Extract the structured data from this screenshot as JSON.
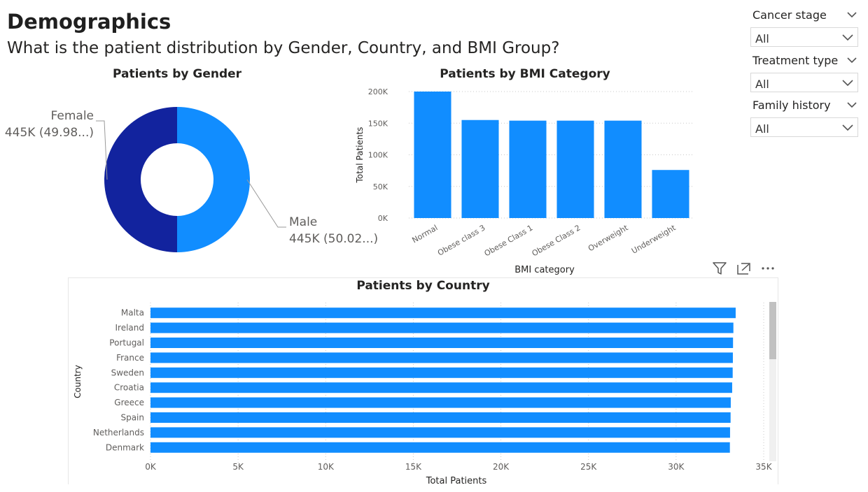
{
  "page": {
    "title": "Demographics",
    "subtitle": "What is the patient distribution by Gender, Country, and BMI Group?"
  },
  "slicers": [
    {
      "label": "Cancer stage",
      "value": "All",
      "icon": "chevron-down-icon"
    },
    {
      "label": "Treatment type",
      "value": "All",
      "icon": "chevron-down-icon"
    },
    {
      "label": "Family history",
      "value": "All",
      "icon": "chevron-down-icon"
    }
  ],
  "visual_header": {
    "icons": [
      "filter-icon",
      "focus-mode-icon",
      "more-options-icon"
    ]
  },
  "colors": {
    "primary": "#118dff",
    "secondary": "#12239e",
    "gridline": "#c8c8c8",
    "text": "#252423"
  },
  "chart_data": [
    {
      "type": "pie",
      "title": "Patients by Gender",
      "donut": true,
      "slices": [
        {
          "label": "Male",
          "value": 445000,
          "display": "445K (50.02...)",
          "color": "#118dff"
        },
        {
          "label": "Female",
          "value": 445000,
          "display": "445K (49.98...)",
          "color": "#12239e"
        }
      ]
    },
    {
      "type": "bar",
      "title": "Patients by BMI Category",
      "xlabel": "BMI category",
      "ylabel": "Total Patients",
      "categories": [
        "Normal",
        "Obese class 3",
        "Obese Class 1",
        "Obese Class 2",
        "Overweight",
        "Underweight"
      ],
      "values": [
        200000,
        155000,
        154000,
        154000,
        154000,
        76000
      ],
      "ylim": [
        0,
        200000
      ],
      "yticks": [
        "0K",
        "50K",
        "100K",
        "150K",
        "200K"
      ],
      "grid": true
    },
    {
      "type": "bar",
      "orientation": "horizontal",
      "title": "Patients by Country",
      "xlabel": "Total Patients",
      "ylabel": "Country",
      "categories": [
        "Malta",
        "Ireland",
        "Portugal",
        "France",
        "Sweden",
        "Croatia",
        "Greece",
        "Spain",
        "Netherlands",
        "Denmark"
      ],
      "values": [
        33400,
        33270,
        33250,
        33240,
        33230,
        33200,
        33120,
        33110,
        33080,
        33070
      ],
      "xlim": [
        0,
        35000
      ],
      "xticks": [
        "0K",
        "5K",
        "10K",
        "15K",
        "20K",
        "25K",
        "30K",
        "35K"
      ],
      "grid": true
    }
  ]
}
